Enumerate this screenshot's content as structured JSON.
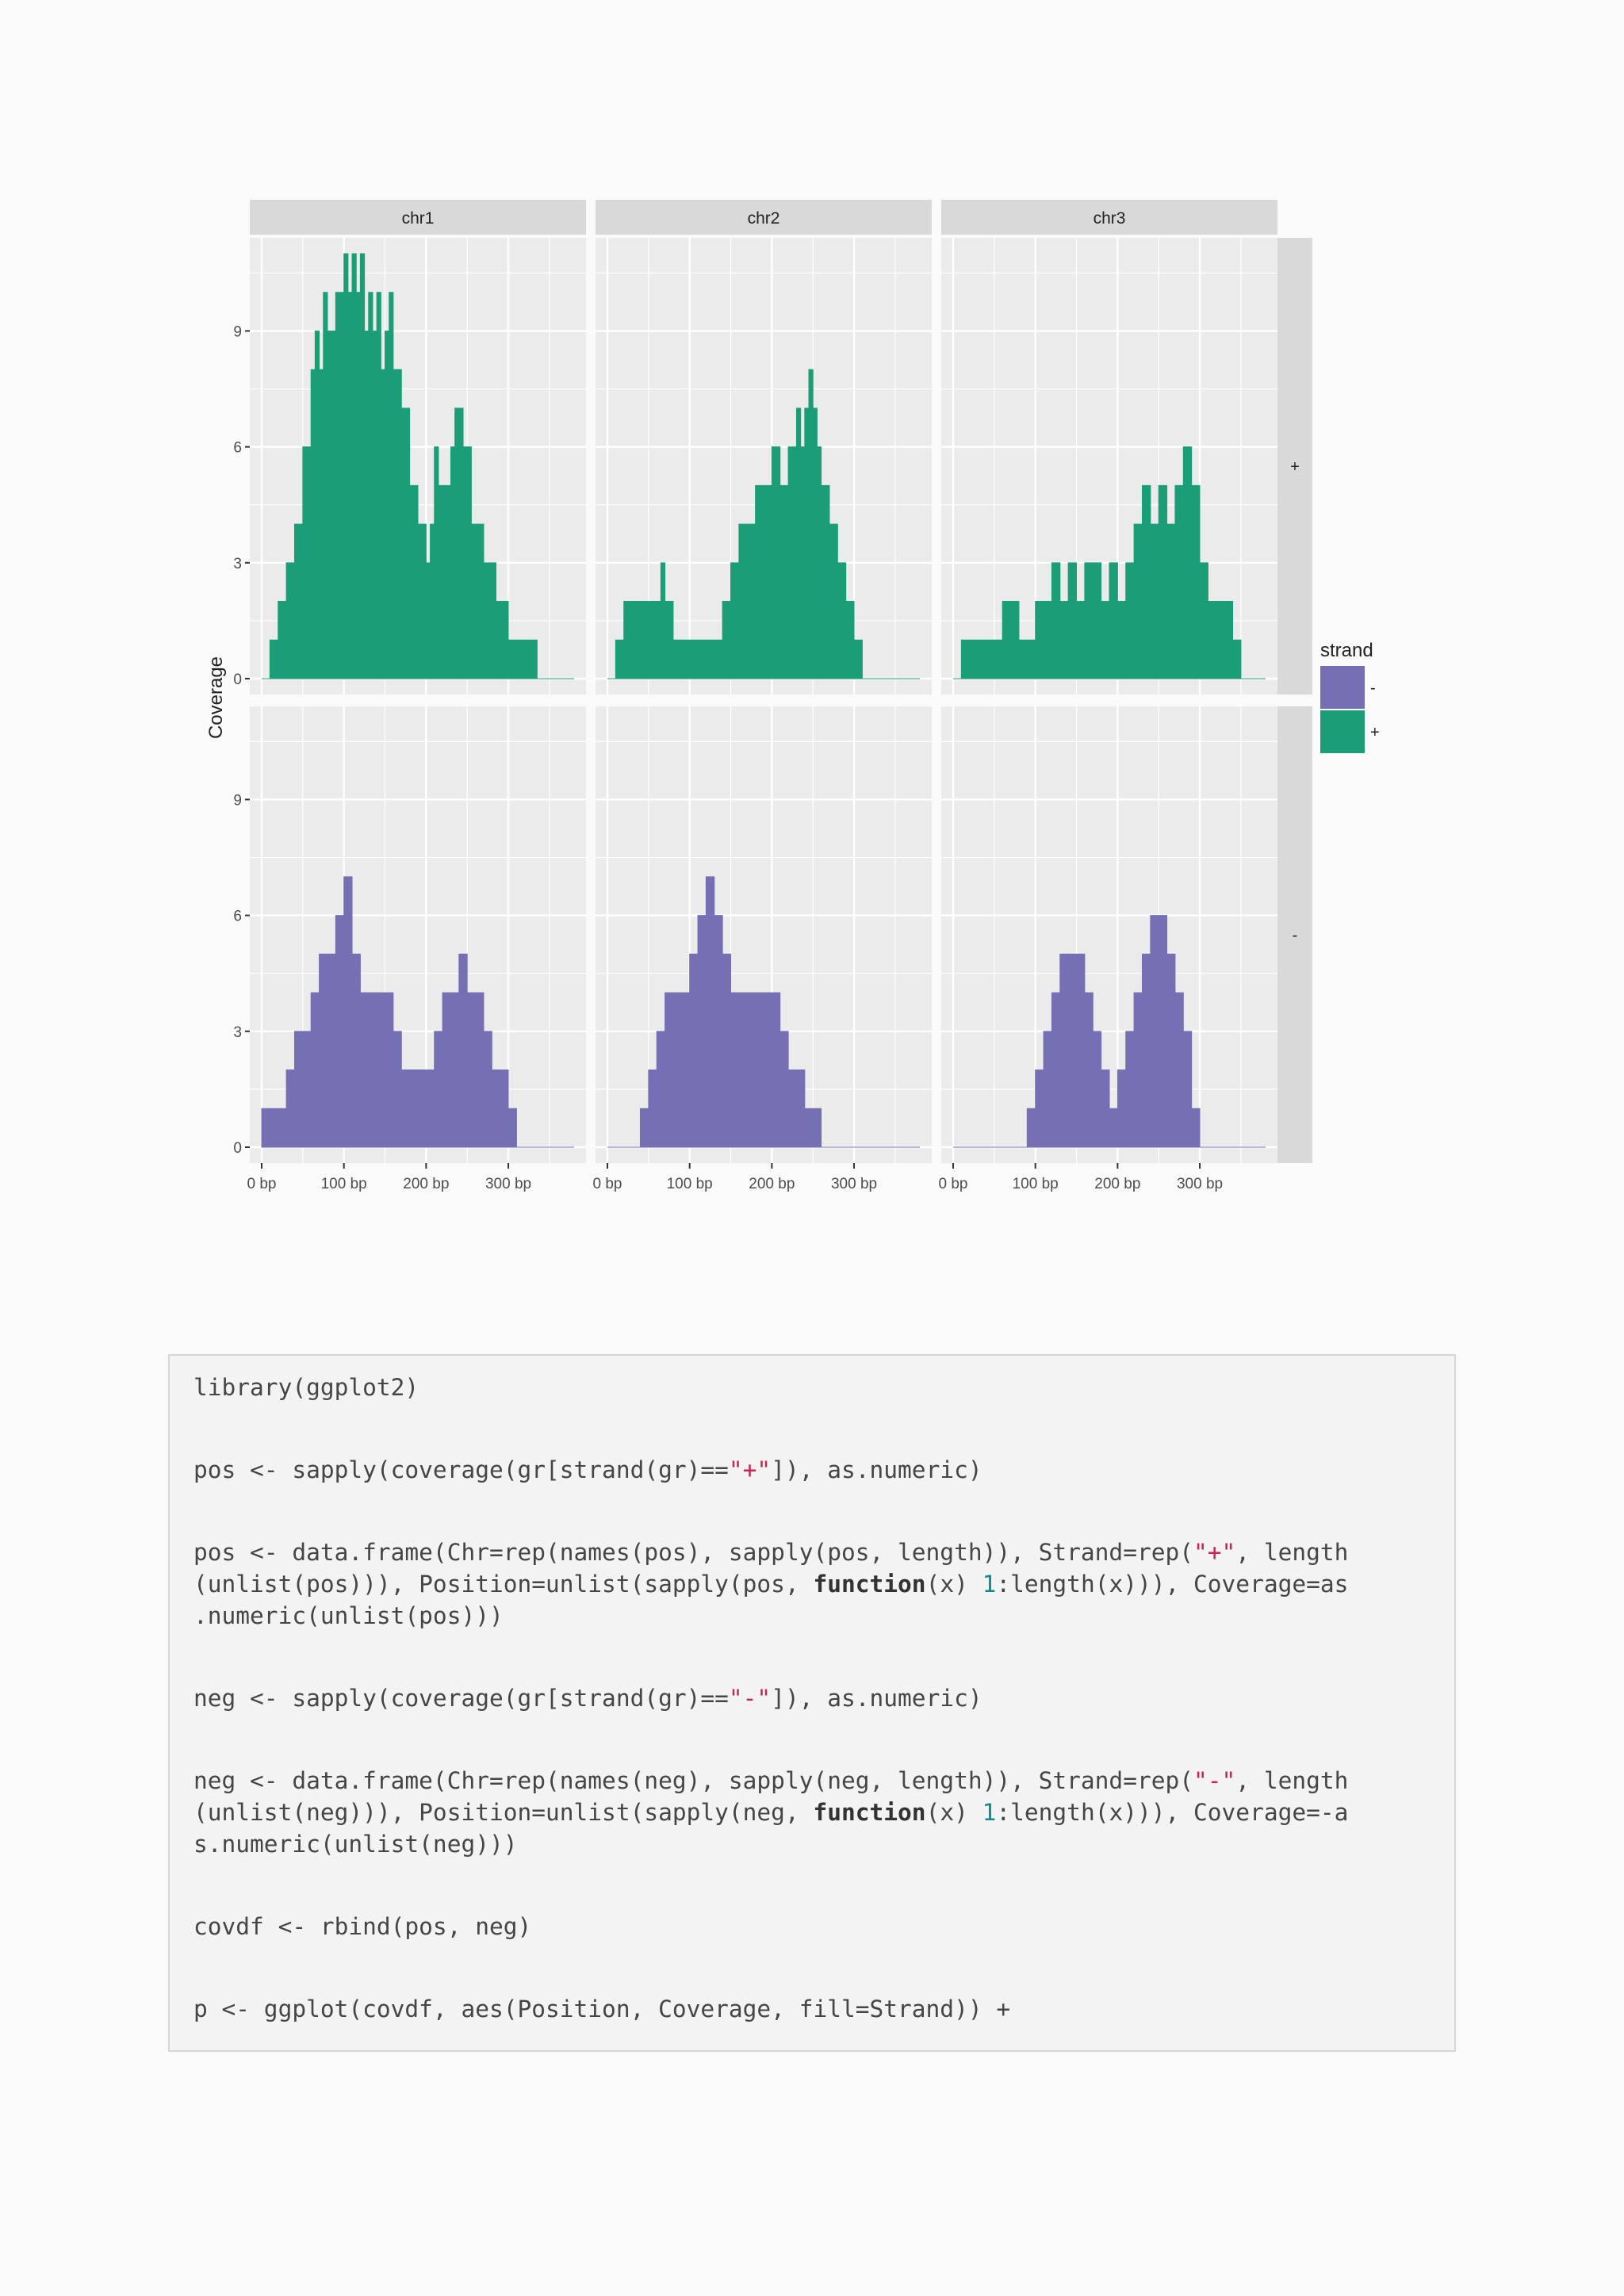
{
  "colors": {
    "plus": "#1b9e77",
    "minus": "#7570b3",
    "panel": "#ebebeb",
    "strip": "#d9d9d9",
    "grid": "#ffffff"
  },
  "chart_data": {
    "type": "area",
    "ylabel": "Coverage",
    "xlim": [
      0,
      380
    ],
    "ylim": [
      0,
      11
    ],
    "x_ticks": [
      0,
      100,
      200,
      300
    ],
    "x_tick_labels": [
      "0 bp",
      "100 bp",
      "200 bp",
      "300 bp"
    ],
    "y_ticks": [
      0,
      3,
      6,
      9
    ],
    "y_tick_labels": [
      "0",
      "3",
      "6",
      "9"
    ],
    "facet_columns": [
      "chr1",
      "chr2",
      "chr3"
    ],
    "facet_rows": [
      "+",
      "-"
    ],
    "legend": {
      "title": "strand",
      "entries": [
        "-",
        "+"
      ],
      "position": "right"
    },
    "grid": true,
    "series": [
      {
        "chr": "chr1",
        "strand": "+",
        "x": [
          0,
          10,
          20,
          30,
          40,
          50,
          60,
          65,
          70,
          75,
          80,
          90,
          100,
          105,
          110,
          115,
          120,
          125,
          130,
          135,
          140,
          145,
          150,
          155,
          160,
          170,
          180,
          190,
          200,
          205,
          210,
          215,
          230,
          235,
          245,
          255,
          270,
          285,
          300,
          335,
          350,
          355,
          370,
          380
        ],
        "y": [
          0,
          1,
          2,
          3,
          4,
          6,
          8,
          9,
          8,
          10,
          9,
          10,
          11,
          10,
          11,
          10,
          11,
          9,
          10,
          9,
          10,
          8,
          9,
          10,
          8,
          7,
          5,
          4,
          3,
          4,
          6,
          5,
          6,
          7,
          6,
          4,
          3,
          2,
          1,
          0,
          0,
          0,
          0,
          0
        ]
      },
      {
        "chr": "chr2",
        "strand": "+",
        "x": [
          0,
          10,
          20,
          40,
          60,
          65,
          70,
          80,
          100,
          120,
          140,
          150,
          160,
          170,
          180,
          190,
          200,
          210,
          220,
          230,
          235,
          240,
          245,
          250,
          255,
          260,
          270,
          280,
          290,
          300,
          310,
          320,
          340,
          350,
          360,
          380
        ],
        "y": [
          0,
          1,
          2,
          2,
          2,
          3,
          2,
          1,
          1,
          1,
          2,
          3,
          4,
          4,
          5,
          5,
          6,
          5,
          6,
          7,
          6,
          7,
          8,
          7,
          6,
          5,
          4,
          3,
          2,
          1,
          0,
          0,
          0,
          0,
          0,
          0
        ]
      },
      {
        "chr": "chr3",
        "strand": "+",
        "x": [
          0,
          10,
          20,
          40,
          60,
          80,
          100,
          110,
          120,
          130,
          140,
          150,
          160,
          170,
          180,
          190,
          200,
          210,
          220,
          230,
          240,
          250,
          260,
          270,
          280,
          290,
          300,
          310,
          320,
          340,
          350,
          360,
          380
        ],
        "y": [
          0,
          1,
          1,
          1,
          2,
          1,
          2,
          2,
          3,
          2,
          3,
          2,
          3,
          3,
          2,
          3,
          2,
          3,
          4,
          5,
          4,
          5,
          4,
          5,
          6,
          5,
          3,
          2,
          2,
          1,
          0,
          0,
          0
        ]
      },
      {
        "chr": "chr1",
        "strand": "-",
        "x": [
          0,
          10,
          20,
          30,
          40,
          50,
          60,
          70,
          80,
          90,
          100,
          110,
          120,
          130,
          140,
          150,
          160,
          170,
          180,
          190,
          200,
          210,
          220,
          230,
          240,
          250,
          260,
          270,
          280,
          290,
          300,
          310,
          320,
          330,
          340,
          350,
          360,
          370,
          380
        ],
        "y": [
          1,
          1,
          1,
          2,
          3,
          3,
          4,
          5,
          5,
          6,
          7,
          5,
          4,
          4,
          4,
          4,
          3,
          2,
          2,
          2,
          2,
          3,
          4,
          4,
          5,
          4,
          4,
          3,
          2,
          2,
          1,
          0,
          0,
          0,
          0,
          0,
          0,
          0,
          0
        ]
      },
      {
        "chr": "chr2",
        "strand": "-",
        "x": [
          0,
          10,
          20,
          30,
          40,
          50,
          60,
          70,
          80,
          90,
          100,
          110,
          120,
          130,
          140,
          150,
          160,
          170,
          180,
          190,
          200,
          210,
          220,
          230,
          240,
          250,
          260,
          270,
          280,
          290,
          300,
          310,
          320,
          330,
          340,
          350,
          360,
          370,
          380
        ],
        "y": [
          0,
          0,
          0,
          0,
          1,
          2,
          3,
          4,
          4,
          4,
          5,
          6,
          7,
          6,
          5,
          4,
          4,
          4,
          4,
          4,
          4,
          3,
          2,
          2,
          1,
          1,
          0,
          0,
          0,
          0,
          0,
          0,
          0,
          0,
          0,
          0,
          0,
          0,
          0
        ]
      },
      {
        "chr": "chr3",
        "strand": "-",
        "x": [
          0,
          10,
          20,
          30,
          40,
          50,
          60,
          70,
          80,
          90,
          100,
          110,
          120,
          130,
          140,
          150,
          160,
          170,
          180,
          190,
          200,
          210,
          220,
          230,
          240,
          250,
          260,
          270,
          280,
          290,
          300,
          310,
          320,
          330,
          340,
          350,
          360,
          370,
          380
        ],
        "y": [
          0,
          0,
          0,
          0,
          0,
          0,
          0,
          0,
          0,
          1,
          2,
          3,
          4,
          5,
          5,
          5,
          4,
          3,
          2,
          1,
          2,
          3,
          4,
          5,
          6,
          6,
          5,
          4,
          3,
          1,
          0,
          0,
          0,
          0,
          0,
          0,
          0,
          0,
          0
        ]
      }
    ]
  },
  "code": {
    "line1": "library(ggplot2)",
    "line2": {
      "a": "pos <- sapply(coverage(gr[strand(gr)==",
      "b": "\"+\"",
      "c": "]), as.numeric)"
    },
    "line3": {
      "a": "pos <- data.frame(Chr=rep(names(pos), sapply(pos, length)), Strand=rep(",
      "b": "\"+\"",
      "c": ", length"
    },
    "line4": {
      "a": "(unlist(pos))), Position=unlist(sapply(pos, ",
      "b": "function",
      "c": "(x) ",
      "d": "1",
      "e": ":length(x))), Coverage=as"
    },
    "line5": ".numeric(unlist(pos)))",
    "line6": {
      "a": "neg <- sapply(coverage(gr[strand(gr)==",
      "b": "\"-\"",
      "c": "]), as.numeric)"
    },
    "line7": {
      "a": "neg <- data.frame(Chr=rep(names(neg), sapply(neg, length)), Strand=rep(",
      "b": "\"-\"",
      "c": ", length"
    },
    "line8": {
      "a": "(unlist(neg))), Position=unlist(sapply(neg, ",
      "b": "function",
      "c": "(x) ",
      "d": "1",
      "e": ":length(x))), Coverage=-a"
    },
    "line9": "s.numeric(unlist(neg)))",
    "line10": "covdf <- rbind(pos, neg)",
    "line11": "p <- ggplot(covdf, aes(Position, Coverage, fill=Strand)) +"
  }
}
